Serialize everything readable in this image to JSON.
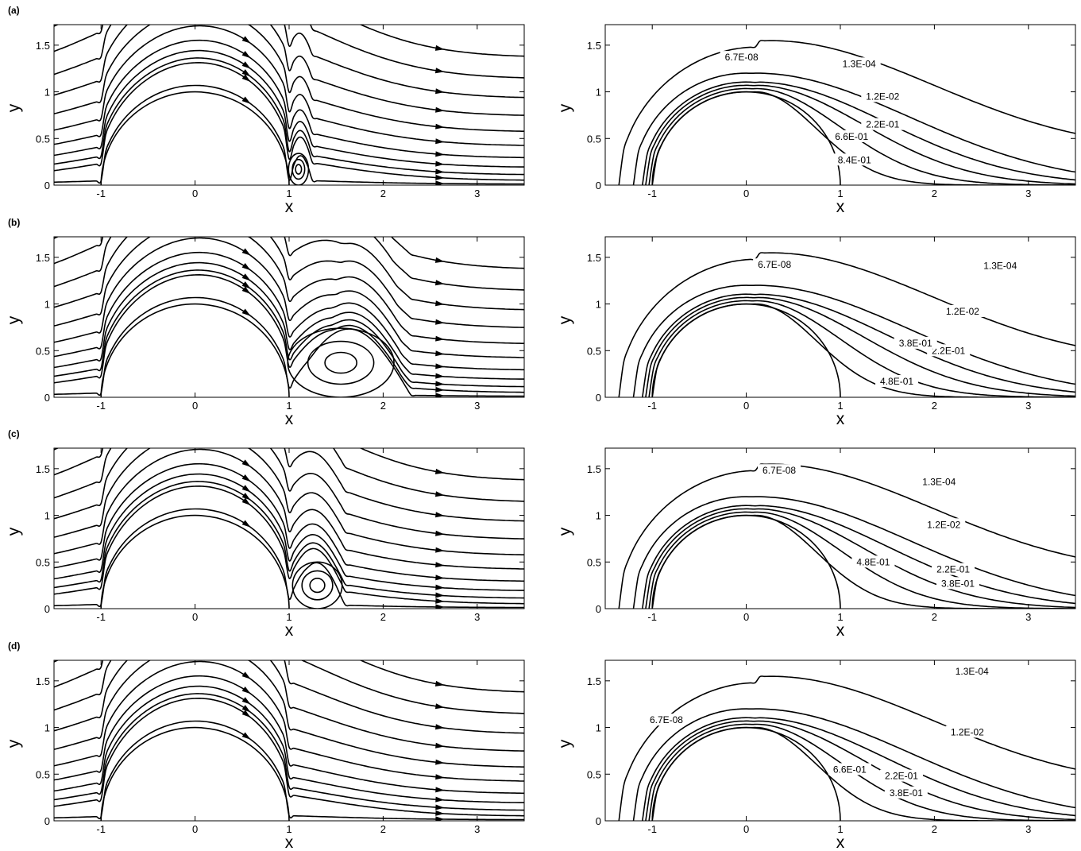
{
  "figure": {
    "row_labels": [
      "(a)",
      "(b)",
      "(c)",
      "(d)"
    ]
  },
  "chart_data": [
    {
      "type": "streamline",
      "panel": "a-left",
      "xlabel": "x",
      "ylabel": "y",
      "xlim": [
        -1.5,
        3.5
      ],
      "ylim": [
        0,
        1.72
      ],
      "x_ticks": [
        -1,
        0,
        1,
        2,
        3
      ],
      "y_ticks": [
        0,
        0.5,
        1,
        1.5
      ],
      "x_tick_labels": [
        "-1",
        "0",
        "1",
        "2",
        "3"
      ],
      "y_tick_labels": [
        "0",
        "0.5",
        "1",
        "1.5"
      ],
      "obstacle": {
        "shape": "semicircle",
        "center": [
          0,
          0
        ],
        "radius": 1
      },
      "recirculation": {
        "center": [
          1.1,
          0.17
        ],
        "x_range": [
          1.0,
          1.25
        ],
        "y_extent": 0.28
      }
    },
    {
      "type": "contour",
      "panel": "a-right",
      "xlabel": "x",
      "ylabel": "y",
      "xlim": [
        -1.5,
        3.5
      ],
      "ylim": [
        0,
        1.72
      ],
      "x_ticks": [
        -1,
        0,
        1,
        2,
        3
      ],
      "y_ticks": [
        0,
        0.5,
        1,
        1.5
      ],
      "x_tick_labels": [
        "-1",
        "0",
        "1",
        "2",
        "3"
      ],
      "y_tick_labels": [
        "0",
        "0.5",
        "1",
        "1.5"
      ],
      "obstacle": {
        "shape": "semicircle",
        "center": [
          0,
          0
        ],
        "radius": 1
      },
      "levels": [
        {
          "label": "6.7E-08",
          "label_pos": [
            -0.05,
            1.37
          ]
        },
        {
          "label": "1.3E-04",
          "label_pos": [
            1.2,
            1.3
          ]
        },
        {
          "label": "1.2E-02",
          "label_pos": [
            1.45,
            0.95
          ]
        },
        {
          "label": "2.2E-01",
          "label_pos": [
            1.45,
            0.65
          ]
        },
        {
          "label": "6.6E-01",
          "label_pos": [
            1.12,
            0.52
          ]
        },
        {
          "label": "8.4E-01",
          "label_pos": [
            1.15,
            0.27
          ]
        }
      ]
    },
    {
      "type": "streamline",
      "panel": "b-left",
      "xlabel": "x",
      "ylabel": "y",
      "xlim": [
        -1.5,
        3.5
      ],
      "ylim": [
        0,
        1.72
      ],
      "x_ticks": [
        -1,
        0,
        1,
        2,
        3
      ],
      "y_ticks": [
        0,
        0.5,
        1,
        1.5
      ],
      "x_tick_labels": [
        "-1",
        "0",
        "1",
        "2",
        "3"
      ],
      "y_tick_labels": [
        "0",
        "0.5",
        "1",
        "1.5"
      ],
      "obstacle": {
        "shape": "semicircle",
        "center": [
          0,
          0
        ],
        "radius": 1
      },
      "recirculation": {
        "center": [
          1.55,
          0.37
        ],
        "x_range": [
          0.97,
          2.3
        ],
        "y_extent": 0.72
      }
    },
    {
      "type": "contour",
      "panel": "b-right",
      "xlabel": "x",
      "ylabel": "y",
      "xlim": [
        -1.5,
        3.5
      ],
      "ylim": [
        0,
        1.72
      ],
      "x_ticks": [
        -1,
        0,
        1,
        2,
        3
      ],
      "y_ticks": [
        0,
        0.5,
        1,
        1.5
      ],
      "x_tick_labels": [
        "-1",
        "0",
        "1",
        "2",
        "3"
      ],
      "y_tick_labels": [
        "0",
        "0.5",
        "1",
        "1.5"
      ],
      "obstacle": {
        "shape": "semicircle",
        "center": [
          0,
          0
        ],
        "radius": 1
      },
      "levels": [
        {
          "label": "6.7E-08",
          "label_pos": [
            0.3,
            1.42
          ]
        },
        {
          "label": "1.3E-04",
          "label_pos": [
            2.7,
            1.41
          ]
        },
        {
          "label": "1.2E-02",
          "label_pos": [
            2.3,
            0.92
          ]
        },
        {
          "label": "2.2E-01",
          "label_pos": [
            2.15,
            0.5
          ]
        },
        {
          "label": "3.8E-01",
          "label_pos": [
            1.8,
            0.58
          ]
        },
        {
          "label": "4.8E-01",
          "label_pos": [
            1.6,
            0.17
          ]
        }
      ]
    },
    {
      "type": "streamline",
      "panel": "c-left",
      "xlabel": "x",
      "ylabel": "y",
      "xlim": [
        -1.5,
        3.5
      ],
      "ylim": [
        0,
        1.72
      ],
      "x_ticks": [
        -1,
        0,
        1,
        2,
        3
      ],
      "y_ticks": [
        0,
        0.5,
        1,
        1.5
      ],
      "x_tick_labels": [
        "-1",
        "0",
        "1",
        "2",
        "3"
      ],
      "y_tick_labels": [
        "0",
        "0.5",
        "1",
        "1.5"
      ],
      "obstacle": {
        "shape": "semicircle",
        "center": [
          0,
          0
        ],
        "radius": 1
      },
      "recirculation": {
        "center": [
          1.3,
          0.25
        ],
        "x_range": [
          0.98,
          1.6
        ],
        "y_extent": 0.48
      }
    },
    {
      "type": "contour",
      "panel": "c-right",
      "xlabel": "x",
      "ylabel": "y",
      "xlim": [
        -1.5,
        3.5
      ],
      "ylim": [
        0,
        1.72
      ],
      "x_ticks": [
        -1,
        0,
        1,
        2,
        3
      ],
      "y_ticks": [
        0,
        0.5,
        1,
        1.5
      ],
      "x_tick_labels": [
        "-1",
        "0",
        "1",
        "2",
        "3"
      ],
      "y_tick_labels": [
        "0",
        "0.5",
        "1",
        "1.5"
      ],
      "obstacle": {
        "shape": "semicircle",
        "center": [
          0,
          0
        ],
        "radius": 1
      },
      "levels": [
        {
          "label": "6.7E-08",
          "label_pos": [
            0.35,
            1.48
          ]
        },
        {
          "label": "1.3E-04",
          "label_pos": [
            2.05,
            1.36
          ]
        },
        {
          "label": "1.2E-02",
          "label_pos": [
            2.1,
            0.9
          ]
        },
        {
          "label": "2.2E-01",
          "label_pos": [
            2.2,
            0.42
          ]
        },
        {
          "label": "3.8E-01",
          "label_pos": [
            2.25,
            0.27
          ]
        },
        {
          "label": "4.8E-01",
          "label_pos": [
            1.35,
            0.5
          ]
        }
      ]
    },
    {
      "type": "streamline",
      "panel": "d-left",
      "xlabel": "x",
      "ylabel": "y",
      "xlim": [
        -1.5,
        3.5
      ],
      "ylim": [
        0,
        1.72
      ],
      "x_ticks": [
        -1,
        0,
        1,
        2,
        3
      ],
      "y_ticks": [
        0,
        0.5,
        1,
        1.5
      ],
      "x_tick_labels": [
        "-1",
        "0",
        "1",
        "2",
        "3"
      ],
      "y_tick_labels": [
        "0",
        "0.5",
        "1",
        "1.5"
      ],
      "obstacle": {
        "shape": "semicircle",
        "center": [
          0,
          0
        ],
        "radius": 1
      },
      "recirculation": null
    },
    {
      "type": "contour",
      "panel": "d-right",
      "xlabel": "x",
      "ylabel": "y",
      "xlim": [
        -1.5,
        3.5
      ],
      "ylim": [
        0,
        1.72
      ],
      "x_ticks": [
        -1,
        0,
        1,
        2,
        3
      ],
      "y_ticks": [
        0,
        0.5,
        1,
        1.5
      ],
      "x_tick_labels": [
        "-1",
        "0",
        "1",
        "2",
        "3"
      ],
      "y_tick_labels": [
        "0",
        "0.5",
        "1",
        "1.5"
      ],
      "obstacle": {
        "shape": "semicircle",
        "center": [
          0,
          0
        ],
        "radius": 1
      },
      "levels": [
        {
          "label": "6.7E-08",
          "label_pos": [
            -0.85,
            1.08
          ]
        },
        {
          "label": "1.3E-04",
          "label_pos": [
            2.4,
            1.6
          ]
        },
        {
          "label": "1.2E-02",
          "label_pos": [
            2.35,
            0.95
          ]
        },
        {
          "label": "2.2E-01",
          "label_pos": [
            1.65,
            0.48
          ]
        },
        {
          "label": "3.8E-01",
          "label_pos": [
            1.7,
            0.3
          ]
        },
        {
          "label": "6.6E-01",
          "label_pos": [
            1.1,
            0.55
          ]
        }
      ]
    }
  ]
}
